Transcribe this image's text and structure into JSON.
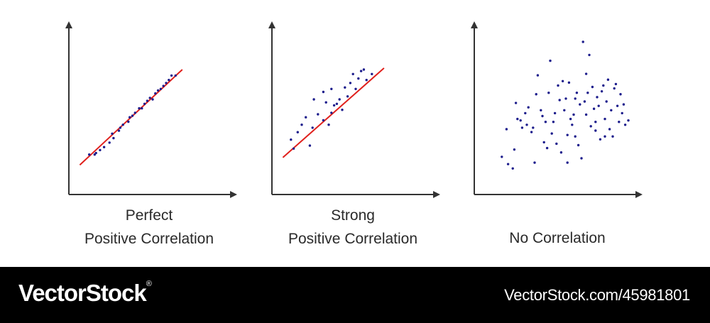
{
  "colors": {
    "axis": "#333333",
    "points": "#1c1c8c",
    "trendline": "#e0201c",
    "footer_bg": "#000000",
    "footer_text": "#ffffff"
  },
  "chart_data": [
    {
      "type": "scatter",
      "title_lines": [
        "Perfect",
        "Positive Correlation"
      ],
      "xlim": [
        0,
        100
      ],
      "ylim": [
        0,
        100
      ],
      "grid": false,
      "trendline": [
        [
          6,
          16
        ],
        [
          82,
          80
        ]
      ],
      "points": [
        [
          17,
          23
        ],
        [
          13,
          23
        ],
        [
          18,
          24
        ],
        [
          21,
          26
        ],
        [
          24,
          28
        ],
        [
          28,
          31
        ],
        [
          31,
          34
        ],
        [
          30,
          37
        ],
        [
          35,
          39
        ],
        [
          36,
          41
        ],
        [
          38,
          43
        ],
        [
          42,
          45
        ],
        [
          43,
          48
        ],
        [
          45,
          49
        ],
        [
          47,
          51
        ],
        [
          50,
          54
        ],
        [
          52,
          54
        ],
        [
          54,
          57
        ],
        [
          56,
          59
        ],
        [
          58,
          61
        ],
        [
          60,
          60
        ],
        [
          62,
          64
        ],
        [
          64,
          66
        ],
        [
          66,
          67
        ],
        [
          68,
          69
        ],
        [
          70,
          71
        ],
        [
          72,
          73
        ],
        [
          74,
          76
        ],
        [
          77,
          76
        ]
      ]
    },
    {
      "type": "scatter",
      "title_lines": [
        "Strong",
        "Positive Correlation"
      ],
      "xlim": [
        0,
        100
      ],
      "ylim": [
        0,
        100
      ],
      "grid": false,
      "trendline": [
        [
          6,
          21
        ],
        [
          81,
          81
        ]
      ],
      "points": [
        [
          12,
          33
        ],
        [
          14,
          27
        ],
        [
          17,
          38
        ],
        [
          20,
          43
        ],
        [
          23,
          48
        ],
        [
          26,
          29
        ],
        [
          28,
          41
        ],
        [
          29,
          60
        ],
        [
          32,
          50
        ],
        [
          36,
          46
        ],
        [
          38,
          58
        ],
        [
          40,
          43
        ],
        [
          42,
          51
        ],
        [
          44,
          56
        ],
        [
          46,
          57
        ],
        [
          48,
          60
        ],
        [
          50,
          53
        ],
        [
          52,
          68
        ],
        [
          54,
          62
        ],
        [
          56,
          71
        ],
        [
          58,
          77
        ],
        [
          60,
          67
        ],
        [
          62,
          74
        ],
        [
          64,
          79
        ],
        [
          66,
          80
        ],
        [
          68,
          73
        ],
        [
          72,
          77
        ],
        [
          36,
          65
        ],
        [
          42,
          67
        ]
      ]
    },
    {
      "type": "scatter",
      "title_lines": [
        "No Correlation"
      ],
      "xlim": [
        0,
        100
      ],
      "ylim": [
        0,
        100
      ],
      "grid": false,
      "points": [
        [
          14,
          22
        ],
        [
          17,
          41
        ],
        [
          18,
          17
        ],
        [
          21,
          14
        ],
        [
          22,
          27
        ],
        [
          23,
          59
        ],
        [
          24,
          48
        ],
        [
          26,
          47
        ],
        [
          27,
          42
        ],
        [
          29,
          52
        ],
        [
          30,
          44
        ],
        [
          31,
          56
        ],
        [
          33,
          39
        ],
        [
          34,
          42
        ],
        [
          35,
          18
        ],
        [
          36,
          65
        ],
        [
          37,
          78
        ],
        [
          39,
          54
        ],
        [
          40,
          50
        ],
        [
          41,
          32
        ],
        [
          42,
          46
        ],
        [
          43,
          28
        ],
        [
          44,
          66
        ],
        [
          45,
          88
        ],
        [
          46,
          38
        ],
        [
          47,
          46
        ],
        [
          48,
          52
        ],
        [
          49,
          31
        ],
        [
          50,
          71
        ],
        [
          51,
          61
        ],
        [
          52,
          25
        ],
        [
          53,
          74
        ],
        [
          54,
          54
        ],
        [
          55,
          62
        ],
        [
          56,
          37
        ],
        [
          57,
          73
        ],
        [
          58,
          48
        ],
        [
          59,
          44
        ],
        [
          60,
          51
        ],
        [
          61,
          36
        ],
        [
          62,
          66
        ],
        [
          63,
          30
        ],
        [
          64,
          58
        ],
        [
          65,
          21
        ],
        [
          66,
          101
        ],
        [
          67,
          60
        ],
        [
          68,
          51
        ],
        [
          69,
          66
        ],
        [
          70,
          92
        ],
        [
          71,
          43
        ],
        [
          72,
          70
        ],
        [
          73,
          55
        ],
        [
          74,
          40
        ],
        [
          75,
          63
        ],
        [
          76,
          57
        ],
        [
          77,
          34
        ],
        [
          78,
          67
        ],
        [
          79,
          71
        ],
        [
          80,
          48
        ],
        [
          81,
          60
        ],
        [
          82,
          75
        ],
        [
          83,
          41
        ],
        [
          84,
          54
        ],
        [
          85,
          36
        ],
        [
          86,
          69
        ],
        [
          87,
          72
        ],
        [
          88,
          57
        ],
        [
          89,
          46
        ],
        [
          90,
          65
        ],
        [
          91,
          52
        ],
        [
          92,
          58
        ],
        [
          93,
          44
        ],
        [
          95,
          47
        ],
        [
          56,
          18
        ],
        [
          61,
          62
        ],
        [
          68,
          79
        ],
        [
          74,
          46
        ],
        [
          80,
          36
        ]
      ]
    }
  ],
  "footer": {
    "logo": "VectorStock",
    "logo_mark": "®",
    "image_id": "VectorStock.com/45981801"
  }
}
